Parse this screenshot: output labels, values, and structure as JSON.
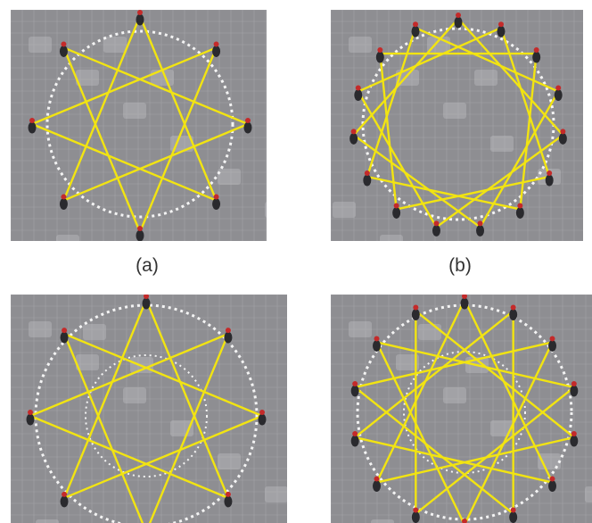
{
  "figure": {
    "panels": [
      {
        "id": "a",
        "caption": "(a)",
        "people": 8,
        "star_step": 3,
        "inner_ring": false
      },
      {
        "id": "b",
        "caption": "(b)",
        "people": 15,
        "star_step": 4,
        "inner_ring": false
      },
      {
        "id": "c",
        "caption": "",
        "people": 8,
        "star_step": 3,
        "inner_ring": true
      },
      {
        "id": "d",
        "caption": "",
        "people": 14,
        "star_step": 5,
        "inner_ring": true
      }
    ],
    "colors": {
      "rope": "#f2e411",
      "pavement": "#8e8e92",
      "tile_line": "#b7b7bb",
      "marker": "#f4f4f4",
      "person_body": "#2a2a2e",
      "person_head": "#c42a2a"
    }
  }
}
